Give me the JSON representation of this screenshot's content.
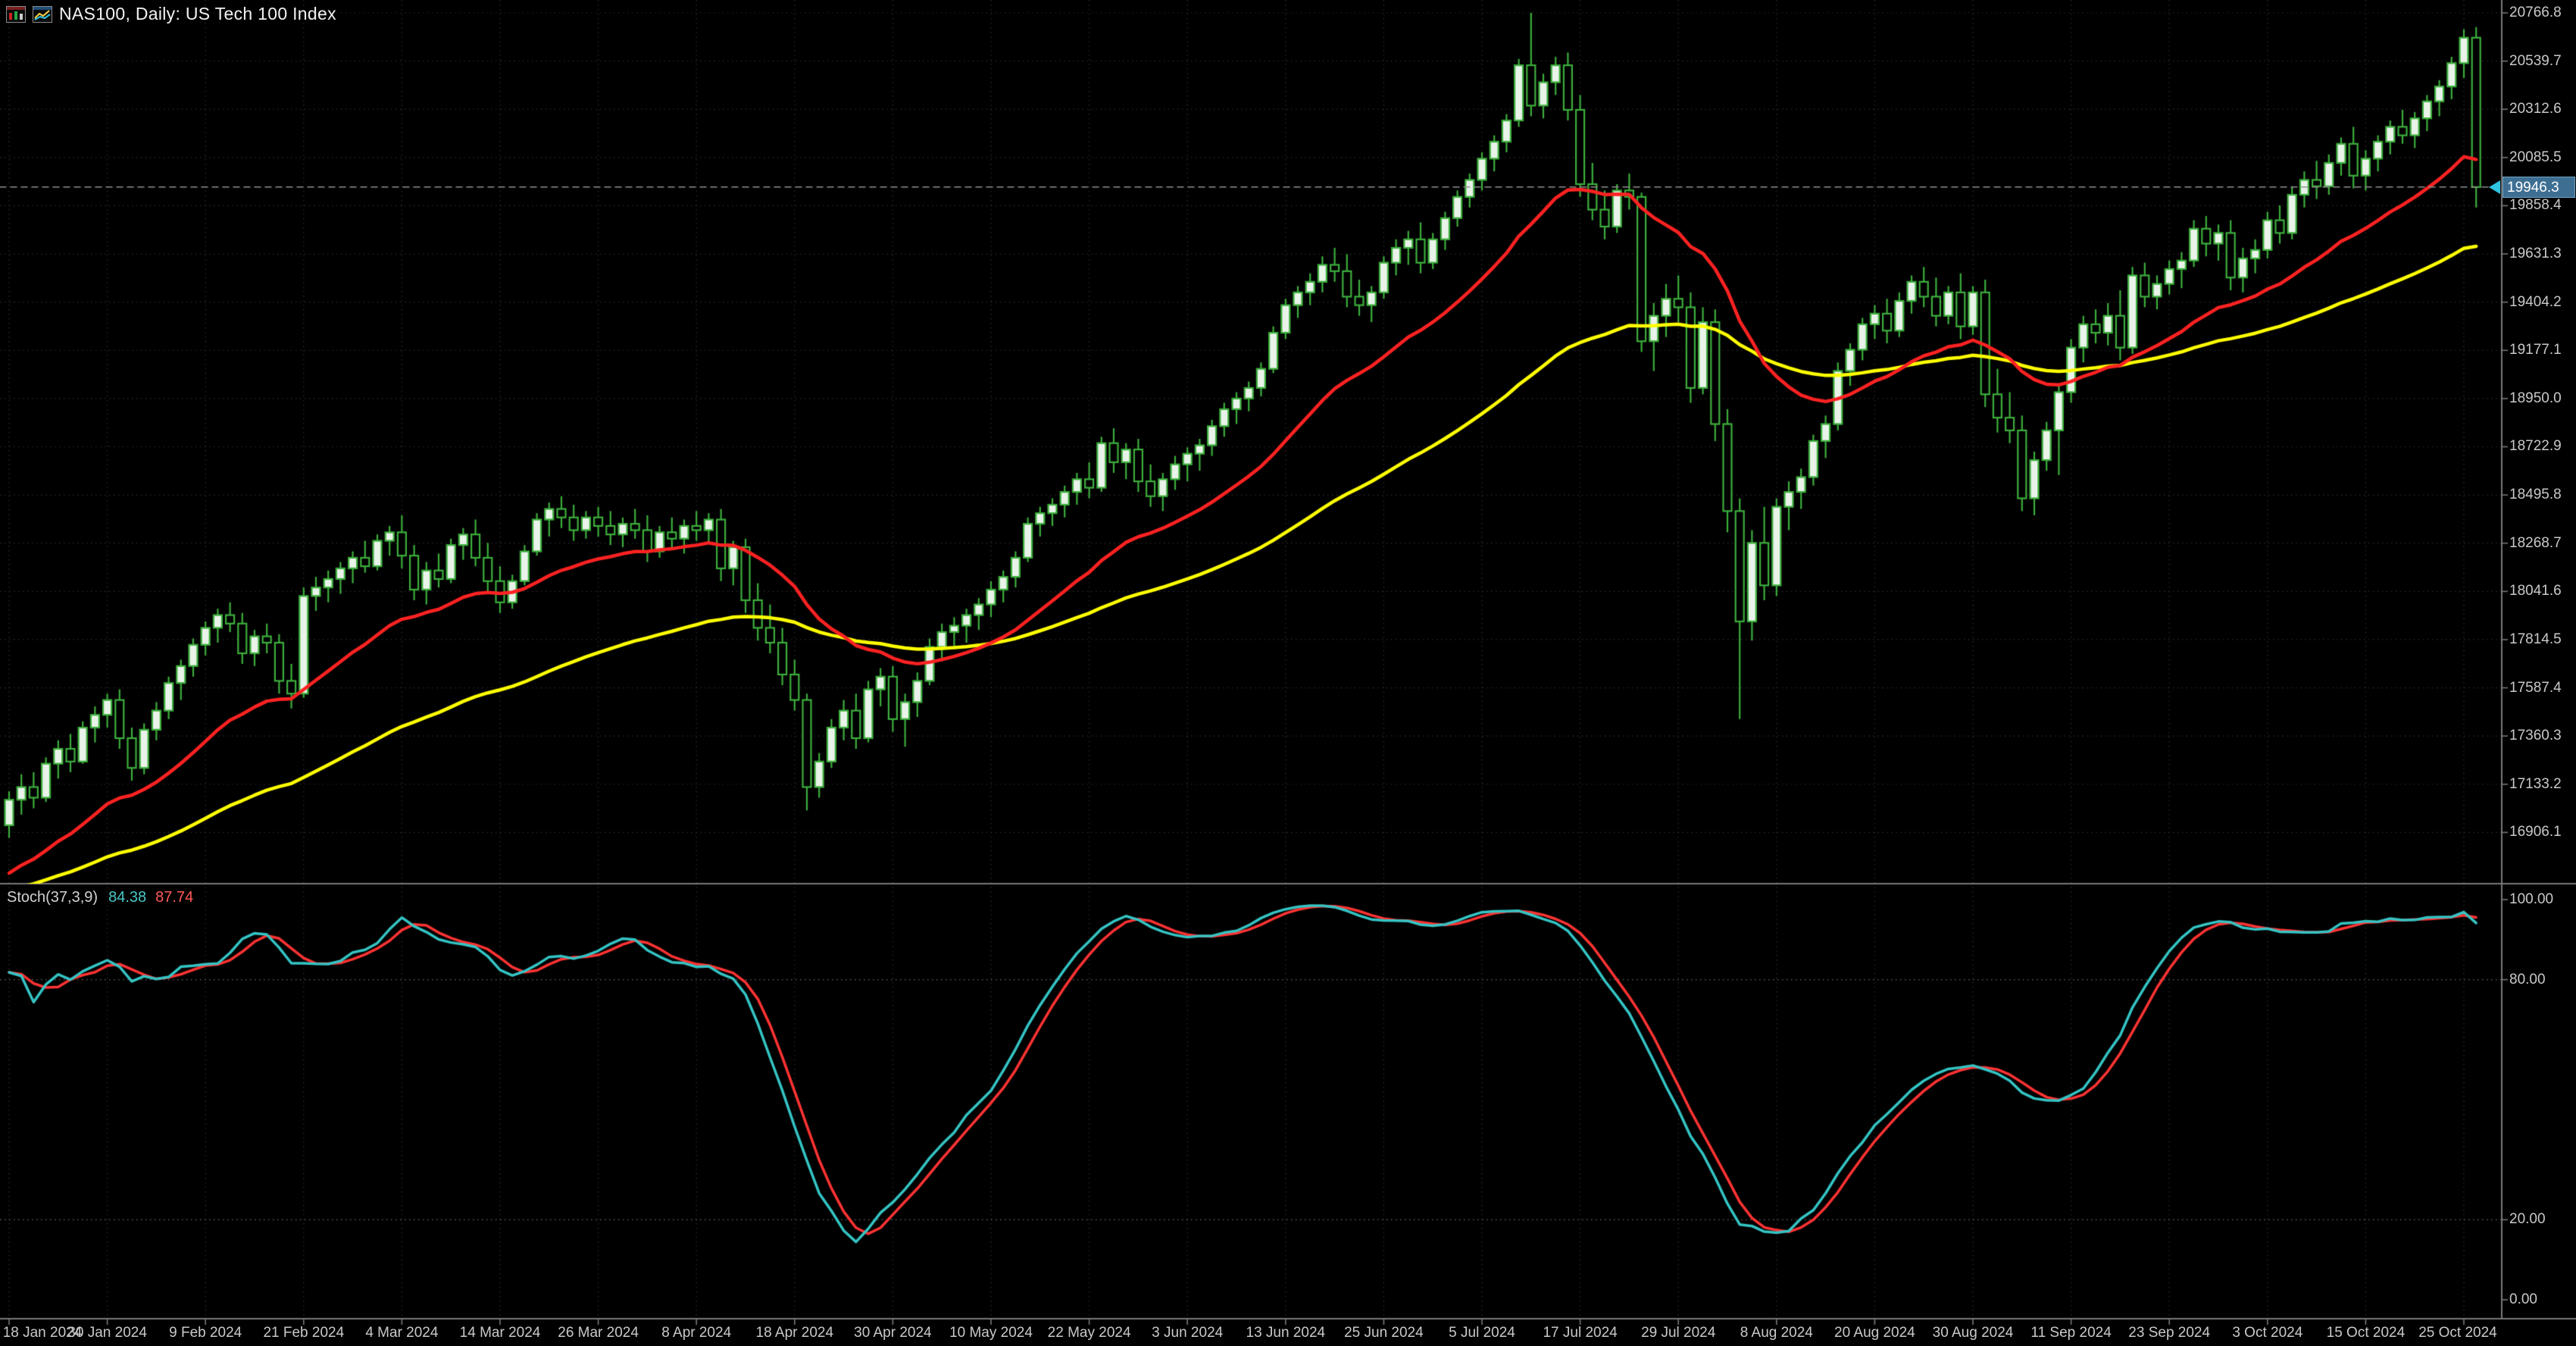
{
  "window": {
    "title": "NAS100, Daily:  US Tech 100 Index",
    "icons": [
      "chart-window-icon",
      "indicator-window-icon"
    ]
  },
  "colors": {
    "background": "#000000",
    "grid": "#2f2f2f",
    "separator": "#787878",
    "axis_text": "#c9c9c9",
    "candle_outline": "#3cae3c",
    "bull_body": "#e9f3e9",
    "bear_body": "#000000",
    "current_price_bg": "#3e6f93",
    "current_price_line": "#8f8f8f",
    "arrow": "#2fc4e0",
    "level_line": "#6e6e6e"
  },
  "chart_data": {
    "type": "candlestick",
    "symbol": "NAS100",
    "timeframe": "Daily",
    "index_name": "US Tech 100 Index",
    "price_axis": {
      "step": 227.1,
      "current_label": "19946.3",
      "labels": [
        "20766.8",
        "20539.7",
        "20312.6",
        "20085.5",
        "19858.4",
        "19631.3",
        "19404.2",
        "19177.1",
        "18950.0",
        "18722.9",
        "18495.8",
        "18268.7",
        "18041.6",
        "17814.5",
        "17587.4",
        "17360.3",
        "17133.2",
        "16906.1"
      ]
    },
    "date_ticks": [
      {
        "index": 0,
        "label": "18 Jan 2024"
      },
      {
        "index": 8,
        "label": "30 Jan 2024"
      },
      {
        "index": 16,
        "label": "9 Feb 2024"
      },
      {
        "index": 24,
        "label": "21 Feb 2024"
      },
      {
        "index": 32,
        "label": "4 Mar 2024"
      },
      {
        "index": 40,
        "label": "14 Mar 2024"
      },
      {
        "index": 48,
        "label": "26 Mar 2024"
      },
      {
        "index": 56,
        "label": "8 Apr 2024"
      },
      {
        "index": 64,
        "label": "18 Apr 2024"
      },
      {
        "index": 72,
        "label": "30 Apr 2024"
      },
      {
        "index": 80,
        "label": "10 May 2024"
      },
      {
        "index": 88,
        "label": "22 May 2024"
      },
      {
        "index": 96,
        "label": "3 Jun 2024"
      },
      {
        "index": 104,
        "label": "13 Jun 2024"
      },
      {
        "index": 112,
        "label": "25 Jun 2024"
      },
      {
        "index": 120,
        "label": "5 Jul 2024"
      },
      {
        "index": 128,
        "label": "17 Jul 2024"
      },
      {
        "index": 136,
        "label": "29 Jul 2024"
      },
      {
        "index": 144,
        "label": "8 Aug 2024"
      },
      {
        "index": 152,
        "label": "20 Aug 2024"
      },
      {
        "index": 160,
        "label": "30 Aug 2024"
      },
      {
        "index": 168,
        "label": "11 Sep 2024"
      },
      {
        "index": 176,
        "label": "23 Sep 2024"
      },
      {
        "index": 184,
        "label": "3 Oct 2024"
      },
      {
        "index": 192,
        "label": "15 Oct 2024"
      },
      {
        "index": 200,
        "label": "25 Oct 2024"
      }
    ],
    "overlays": [
      {
        "name": "ma-fast",
        "type": "ema",
        "period": 21,
        "seed": 16680,
        "color": "#ff2222",
        "width": 4.5
      },
      {
        "name": "ma-slow",
        "type": "ema",
        "period": 60,
        "seed": 16620,
        "color": "#ffff00",
        "width": 4.5
      }
    ],
    "stochastic": {
      "label": "Stoch(37,3,9)",
      "k_period": 37,
      "d_period": 3,
      "slowing": 9,
      "main_value": "84.38",
      "signal_value": "87.74",
      "main_color": "#35c4c4",
      "signal_color": "#ff3333",
      "width": 3.5,
      "levels": [
        {
          "value": 100,
          "label": "100.00"
        },
        {
          "value": 80,
          "label": "80.00"
        },
        {
          "value": 20,
          "label": "20.00"
        },
        {
          "value": 0,
          "label": "0.00"
        }
      ]
    },
    "candles": [
      [
        16940,
        17100,
        16880,
        17060
      ],
      [
        17060,
        17180,
        16990,
        17120
      ],
      [
        17120,
        17190,
        17020,
        17070
      ],
      [
        17070,
        17260,
        17050,
        17230
      ],
      [
        17230,
        17340,
        17160,
        17300
      ],
      [
        17300,
        17370,
        17190,
        17240
      ],
      [
        17240,
        17430,
        17230,
        17400
      ],
      [
        17400,
        17500,
        17330,
        17460
      ],
      [
        17460,
        17560,
        17400,
        17530
      ],
      [
        17530,
        17580,
        17300,
        17350
      ],
      [
        17350,
        17400,
        17150,
        17210
      ],
      [
        17210,
        17420,
        17180,
        17390
      ],
      [
        17390,
        17520,
        17340,
        17480
      ],
      [
        17480,
        17640,
        17440,
        17610
      ],
      [
        17610,
        17720,
        17530,
        17690
      ],
      [
        17690,
        17820,
        17640,
        17790
      ],
      [
        17790,
        17900,
        17740,
        17870
      ],
      [
        17870,
        17960,
        17800,
        17930
      ],
      [
        17930,
        17990,
        17850,
        17890
      ],
      [
        17890,
        17940,
        17700,
        17750
      ],
      [
        17750,
        17860,
        17690,
        17830
      ],
      [
        17830,
        17890,
        17750,
        17800
      ],
      [
        17800,
        17840,
        17560,
        17620
      ],
      [
        17620,
        17700,
        17490,
        17560
      ],
      [
        17560,
        18060,
        17540,
        18020
      ],
      [
        18020,
        18110,
        17950,
        18060
      ],
      [
        18060,
        18140,
        17990,
        18100
      ],
      [
        18100,
        18180,
        18030,
        18150
      ],
      [
        18150,
        18230,
        18080,
        18200
      ],
      [
        18200,
        18280,
        18130,
        18160
      ],
      [
        18160,
        18310,
        18140,
        18280
      ],
      [
        18280,
        18350,
        18210,
        18320
      ],
      [
        18320,
        18400,
        18150,
        18210
      ],
      [
        18210,
        18260,
        18000,
        18050
      ],
      [
        18050,
        18180,
        17980,
        18140
      ],
      [
        18140,
        18220,
        18060,
        18100
      ],
      [
        18100,
        18290,
        18080,
        18260
      ],
      [
        18260,
        18340,
        18190,
        18310
      ],
      [
        18310,
        18380,
        18160,
        18200
      ],
      [
        18200,
        18270,
        18040,
        18090
      ],
      [
        18090,
        18160,
        17940,
        17990
      ],
      [
        17990,
        18120,
        17960,
        18090
      ],
      [
        18090,
        18260,
        18070,
        18230
      ],
      [
        18230,
        18410,
        18210,
        18380
      ],
      [
        18380,
        18460,
        18300,
        18430
      ],
      [
        18430,
        18490,
        18340,
        18390
      ],
      [
        18390,
        18450,
        18280,
        18330
      ],
      [
        18330,
        18420,
        18290,
        18390
      ],
      [
        18390,
        18440,
        18300,
        18350
      ],
      [
        18350,
        18420,
        18260,
        18310
      ],
      [
        18310,
        18390,
        18250,
        18360
      ],
      [
        18360,
        18430,
        18290,
        18330
      ],
      [
        18330,
        18400,
        18180,
        18230
      ],
      [
        18230,
        18350,
        18200,
        18320
      ],
      [
        18320,
        18390,
        18250,
        18290
      ],
      [
        18290,
        18380,
        18220,
        18350
      ],
      [
        18350,
        18420,
        18280,
        18330
      ],
      [
        18330,
        18410,
        18270,
        18380
      ],
      [
        18380,
        18430,
        18090,
        18150
      ],
      [
        18150,
        18280,
        18070,
        18250
      ],
      [
        18250,
        18290,
        17940,
        18000
      ],
      [
        18000,
        18080,
        17810,
        17870
      ],
      [
        17870,
        17980,
        17750,
        17800
      ],
      [
        17800,
        17870,
        17600,
        17650
      ],
      [
        17650,
        17720,
        17480,
        17530
      ],
      [
        17530,
        17560,
        17010,
        17120
      ],
      [
        17120,
        17280,
        17070,
        17240
      ],
      [
        17240,
        17440,
        17210,
        17400
      ],
      [
        17400,
        17530,
        17340,
        17480
      ],
      [
        17480,
        17560,
        17300,
        17350
      ],
      [
        17350,
        17620,
        17330,
        17580
      ],
      [
        17580,
        17680,
        17500,
        17640
      ],
      [
        17640,
        17690,
        17380,
        17440
      ],
      [
        17440,
        17560,
        17310,
        17520
      ],
      [
        17520,
        17660,
        17450,
        17620
      ],
      [
        17620,
        17820,
        17600,
        17780
      ],
      [
        17780,
        17890,
        17720,
        17850
      ],
      [
        17850,
        17920,
        17770,
        17880
      ],
      [
        17880,
        17960,
        17800,
        17930
      ],
      [
        17930,
        18010,
        17860,
        17980
      ],
      [
        17980,
        18090,
        17920,
        18050
      ],
      [
        18050,
        18140,
        17990,
        18110
      ],
      [
        18110,
        18230,
        18060,
        18200
      ],
      [
        18200,
        18390,
        18180,
        18360
      ],
      [
        18360,
        18440,
        18300,
        18410
      ],
      [
        18410,
        18480,
        18350,
        18450
      ],
      [
        18450,
        18540,
        18390,
        18510
      ],
      [
        18510,
        18600,
        18450,
        18570
      ],
      [
        18570,
        18650,
        18480,
        18530
      ],
      [
        18530,
        18770,
        18510,
        18740
      ],
      [
        18740,
        18810,
        18600,
        18650
      ],
      [
        18650,
        18740,
        18570,
        18710
      ],
      [
        18710,
        18760,
        18510,
        18560
      ],
      [
        18560,
        18640,
        18440,
        18490
      ],
      [
        18490,
        18600,
        18420,
        18570
      ],
      [
        18570,
        18680,
        18520,
        18640
      ],
      [
        18640,
        18720,
        18560,
        18690
      ],
      [
        18690,
        18760,
        18610,
        18730
      ],
      [
        18730,
        18850,
        18680,
        18820
      ],
      [
        18820,
        18930,
        18770,
        18900
      ],
      [
        18900,
        18980,
        18830,
        18950
      ],
      [
        18950,
        19030,
        18890,
        19000
      ],
      [
        19000,
        19120,
        18960,
        19090
      ],
      [
        19090,
        19290,
        19070,
        19260
      ],
      [
        19260,
        19420,
        19230,
        19390
      ],
      [
        19390,
        19480,
        19330,
        19450
      ],
      [
        19450,
        19540,
        19390,
        19500
      ],
      [
        19500,
        19620,
        19450,
        19580
      ],
      [
        19580,
        19660,
        19500,
        19550
      ],
      [
        19550,
        19630,
        19380,
        19430
      ],
      [
        19430,
        19510,
        19340,
        19390
      ],
      [
        19390,
        19480,
        19310,
        19450
      ],
      [
        19450,
        19620,
        19420,
        19590
      ],
      [
        19590,
        19700,
        19530,
        19660
      ],
      [
        19660,
        19740,
        19580,
        19700
      ],
      [
        19700,
        19780,
        19540,
        19590
      ],
      [
        19590,
        19730,
        19560,
        19700
      ],
      [
        19700,
        19830,
        19650,
        19800
      ],
      [
        19800,
        19930,
        19760,
        19900
      ],
      [
        19900,
        20010,
        19850,
        19980
      ],
      [
        19980,
        20110,
        19930,
        20080
      ],
      [
        20080,
        20190,
        20020,
        20160
      ],
      [
        20160,
        20290,
        20110,
        20260
      ],
      [
        20260,
        20550,
        20230,
        20520
      ],
      [
        20520,
        20767,
        20280,
        20330
      ],
      [
        20330,
        20480,
        20270,
        20440
      ],
      [
        20440,
        20560,
        20380,
        20520
      ],
      [
        20520,
        20580,
        20260,
        20310
      ],
      [
        20310,
        20380,
        19900,
        19960
      ],
      [
        19960,
        20060,
        19790,
        19840
      ],
      [
        19840,
        19930,
        19700,
        19760
      ],
      [
        19760,
        19960,
        19730,
        19930
      ],
      [
        19930,
        20010,
        19840,
        19900
      ],
      [
        19900,
        19920,
        19170,
        19220
      ],
      [
        19220,
        19400,
        19080,
        19340
      ],
      [
        19340,
        19490,
        19240,
        19420
      ],
      [
        19420,
        19530,
        19310,
        19380
      ],
      [
        19380,
        19450,
        18930,
        19000
      ],
      [
        19000,
        19380,
        18970,
        19310
      ],
      [
        19310,
        19370,
        18750,
        18830
      ],
      [
        18830,
        18900,
        18320,
        18420
      ],
      [
        18420,
        18480,
        17440,
        17900
      ],
      [
        17900,
        18330,
        17810,
        18270
      ],
      [
        18270,
        18440,
        18000,
        18070
      ],
      [
        18070,
        18480,
        18020,
        18440
      ],
      [
        18440,
        18560,
        18330,
        18510
      ],
      [
        18510,
        18620,
        18430,
        18580
      ],
      [
        18580,
        18780,
        18540,
        18750
      ],
      [
        18750,
        18870,
        18670,
        18830
      ],
      [
        18830,
        19120,
        18800,
        19080
      ],
      [
        19080,
        19210,
        19010,
        19180
      ],
      [
        19180,
        19330,
        19130,
        19300
      ],
      [
        19300,
        19390,
        19230,
        19350
      ],
      [
        19350,
        19420,
        19210,
        19270
      ],
      [
        19270,
        19450,
        19240,
        19410
      ],
      [
        19410,
        19530,
        19350,
        19500
      ],
      [
        19500,
        19570,
        19380,
        19430
      ],
      [
        19430,
        19520,
        19290,
        19340
      ],
      [
        19340,
        19480,
        19300,
        19450
      ],
      [
        19450,
        19540,
        19230,
        19290
      ],
      [
        19290,
        19480,
        19250,
        19450
      ],
      [
        19450,
        19510,
        18910,
        18970
      ],
      [
        18970,
        19090,
        18790,
        18860
      ],
      [
        18860,
        18980,
        18740,
        18800
      ],
      [
        18800,
        18870,
        18420,
        18480
      ],
      [
        18480,
        18700,
        18400,
        18660
      ],
      [
        18660,
        18840,
        18610,
        18800
      ],
      [
        18800,
        19020,
        18590,
        18980
      ],
      [
        18980,
        19230,
        18930,
        19190
      ],
      [
        19190,
        19340,
        19120,
        19300
      ],
      [
        19300,
        19370,
        19210,
        19260
      ],
      [
        19260,
        19400,
        19200,
        19340
      ],
      [
        19340,
        19460,
        19130,
        19190
      ],
      [
        19190,
        19570,
        19160,
        19530
      ],
      [
        19530,
        19590,
        19380,
        19430
      ],
      [
        19430,
        19530,
        19370,
        19490
      ],
      [
        19490,
        19600,
        19440,
        19560
      ],
      [
        19560,
        19640,
        19470,
        19600
      ],
      [
        19600,
        19790,
        19570,
        19750
      ],
      [
        19750,
        19810,
        19620,
        19680
      ],
      [
        19680,
        19770,
        19600,
        19730
      ],
      [
        19730,
        19790,
        19460,
        19520
      ],
      [
        19520,
        19660,
        19450,
        19610
      ],
      [
        19610,
        19700,
        19540,
        19650
      ],
      [
        19650,
        19830,
        19610,
        19790
      ],
      [
        19790,
        19860,
        19680,
        19730
      ],
      [
        19730,
        19950,
        19700,
        19910
      ],
      [
        19910,
        20020,
        19850,
        19980
      ],
      [
        19980,
        20070,
        19890,
        19950
      ],
      [
        19950,
        20100,
        19910,
        20060
      ],
      [
        20060,
        20180,
        20000,
        20150
      ],
      [
        20150,
        20230,
        19940,
        20000
      ],
      [
        20000,
        20120,
        19930,
        20080
      ],
      [
        20080,
        20190,
        20020,
        20160
      ],
      [
        20160,
        20260,
        20100,
        20230
      ],
      [
        20230,
        20310,
        20150,
        20190
      ],
      [
        20190,
        20300,
        20130,
        20270
      ],
      [
        20270,
        20380,
        20210,
        20350
      ],
      [
        20350,
        20450,
        20280,
        20420
      ],
      [
        20420,
        20560,
        20360,
        20530
      ],
      [
        20530,
        20690,
        20460,
        20650
      ],
      [
        20650,
        20700,
        19850,
        19946.3
      ]
    ]
  }
}
